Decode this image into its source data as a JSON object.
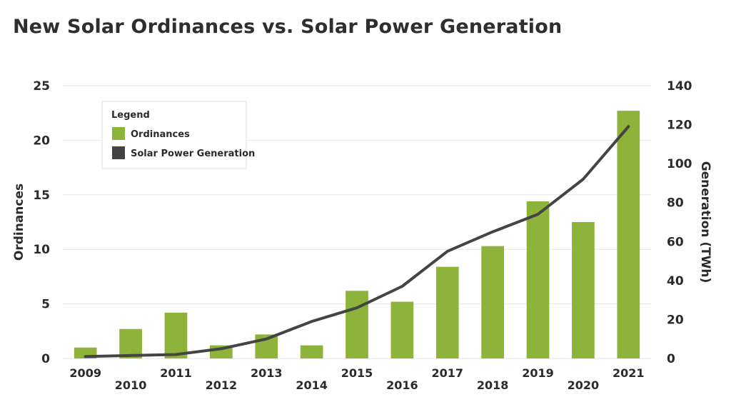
{
  "chart_data": {
    "type": "bar",
    "title": "New Solar Ordinances vs. Solar Power Generation",
    "categories": [
      "2009",
      "2010",
      "2011",
      "2012",
      "2013",
      "2014",
      "2015",
      "2016",
      "2017",
      "2018",
      "2019",
      "2020",
      "2021"
    ],
    "series": [
      {
        "name": "Ordinances",
        "type": "bar",
        "axis": "left",
        "color": "#8db33a",
        "values": [
          1,
          2.7,
          4.2,
          1.2,
          2.2,
          1.2,
          6.2,
          5.2,
          8.4,
          10.3,
          14.4,
          12.5,
          22.7
        ]
      },
      {
        "name": "Solar Power Generation",
        "type": "line",
        "axis": "right",
        "color": "#444444",
        "values": [
          1,
          1.5,
          2,
          5,
          10,
          19,
          26,
          37,
          55,
          65,
          74,
          92,
          119
        ]
      }
    ],
    "ylabel": "Ordinances",
    "y2label": "Generation (TWh)",
    "ylim": [
      0,
      25
    ],
    "y2lim": [
      0,
      140
    ],
    "yticks": [
      "0",
      "5",
      "10",
      "15",
      "20",
      "25"
    ],
    "y2ticks": [
      "0",
      "20",
      "40",
      "60",
      "80",
      "100",
      "120",
      "140"
    ],
    "grid": true,
    "legend": {
      "title": "Legend",
      "position": "top-left"
    }
  }
}
